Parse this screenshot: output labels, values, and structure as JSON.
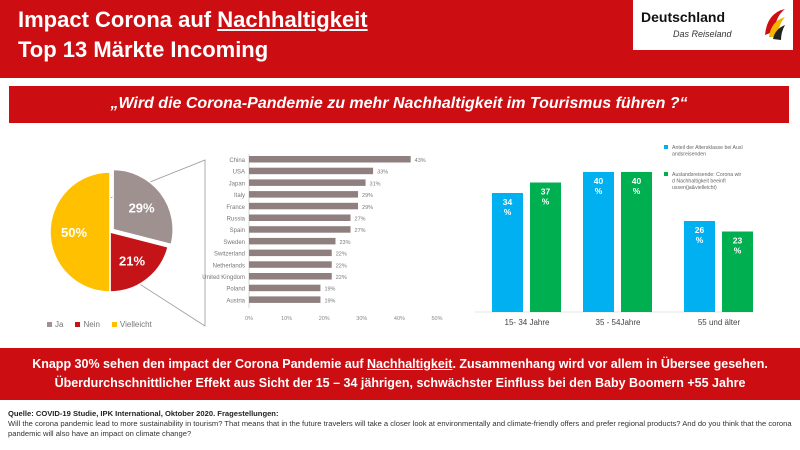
{
  "header": {
    "title_line1_prefix": "Impact Corona auf ",
    "title_line1_underlined": "Nachhaltigkeit",
    "title_line2": "Top 13 Märkte Incoming",
    "logo_name": "Deutschland",
    "logo_tagline": "Das Reiseland"
  },
  "question": "„Wird die Corona-Pandemie zu mehr Nachhaltigkeit im Tourismus führen ?“",
  "colors": {
    "brand_red": "#cc0e12",
    "ja": "#a09191",
    "nein": "#c41418",
    "vielleicht": "#ffc000",
    "country_bar": "#8f7f7f",
    "age_share": "#00b0f0",
    "age_impact": "#00b050"
  },
  "chart_data": [
    {
      "type": "pie",
      "categories": [
        "Ja",
        "Nein",
        "Vielleicht"
      ],
      "values": [
        29,
        21,
        50
      ],
      "data_labels": [
        "29%",
        "21%",
        "50%"
      ],
      "legend_position": "bottom"
    },
    {
      "type": "bar",
      "orientation": "horizontal",
      "categories": [
        "China",
        "USA",
        "Japan",
        "Italy",
        "France",
        "Russia",
        "Spain",
        "Sweden",
        "Switzerland",
        "Netherlands",
        "United Kingdom",
        "Poland",
        "Austria"
      ],
      "values": [
        43,
        33,
        31,
        29,
        29,
        27,
        27,
        23,
        22,
        22,
        22,
        19,
        19
      ],
      "data_labels": [
        "43%",
        "33%",
        "31%",
        "29%",
        "29%",
        "27%",
        "27%",
        "23%",
        "22%",
        "22%",
        "22%",
        "19%",
        "19%"
      ],
      "xlim": [
        0,
        50
      ],
      "x_ticks": [
        "0%",
        "10%",
        "20%",
        "30%",
        "40%",
        "50%"
      ],
      "grid": false
    },
    {
      "type": "bar",
      "categories": [
        "15- 34 Jahre",
        "35 - 54Jahre",
        "55 und älter"
      ],
      "series": [
        {
          "name": "Anteil der Altersklasse bei Auslandsreisenden",
          "values": [
            34,
            40,
            26
          ],
          "data_labels": [
            "34 %",
            "40 %",
            "26 %"
          ]
        },
        {
          "name": "Auslandsreisende: Corona wird Nachhaltigkeit beeinflussen(ja&vielleicht)",
          "values": [
            37,
            40,
            23
          ],
          "data_labels": [
            "37 %",
            "40 %",
            "23 %"
          ]
        }
      ],
      "ylim": [
        0,
        40
      ],
      "legend_position": "right",
      "grid": false
    }
  ],
  "summary": {
    "line1_prefix": "Knapp 30% sehen den impact der Corona Pandemie auf ",
    "line1_underlined": "Nachhaltigkeit",
    "line1_suffix": ". Zusammenhang wird vor allem in Übersee gesehen.",
    "line2": "Überdurchschnittlicher Effekt aus Sicht der 15 – 34 jährigen, schwächster Einfluss bei den Baby Boomern +55 Jahre"
  },
  "source": {
    "title": "Quelle: COVID-19 Studie, IPK International, Oktober 2020. Fragestellungen:",
    "text": "Will the corona pandemic lead to more sustainability in tourism? That means that in the future travelers will take a closer look at environmentally and climate-friendly offers and prefer regional products? And do you think that the corona pandemic will also have an impact on climate change?"
  }
}
